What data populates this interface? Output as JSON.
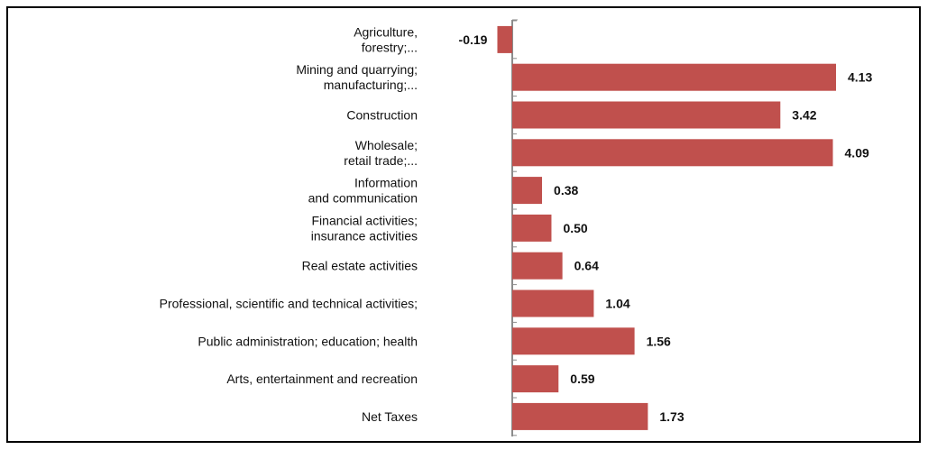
{
  "chart_data": {
    "type": "bar",
    "orientation": "horizontal",
    "categories": [
      [
        "Agriculture,",
        "forestry;..."
      ],
      [
        "Mining and quarrying;",
        "manufacturing;..."
      ],
      [
        "Construction"
      ],
      [
        "Wholesale;",
        "retail trade;..."
      ],
      [
        "Information",
        "and communication"
      ],
      [
        "Financial activities;",
        "insurance activities"
      ],
      [
        "Real estate activities"
      ],
      [
        "Professional, scientific and technical activities;"
      ],
      [
        "Public administration; education; health"
      ],
      [
        "Arts, entertainment and recreation"
      ],
      [
        "Net Taxes"
      ]
    ],
    "values": [
      -0.19,
      4.13,
      3.42,
      4.09,
      0.38,
      0.5,
      0.64,
      1.04,
      1.56,
      0.59,
      1.73
    ],
    "value_labels": [
      "-0.19",
      "4.13",
      "3.42",
      "4.09",
      "0.38",
      "0.50",
      "0.64",
      "1.04",
      "1.56",
      "0.59",
      "1.73"
    ],
    "title": "",
    "xlabel": "",
    "ylabel": "",
    "grid": false,
    "legend": "none",
    "bar_color": "#c0504d",
    "axis_color": "#8c8c8c"
  }
}
